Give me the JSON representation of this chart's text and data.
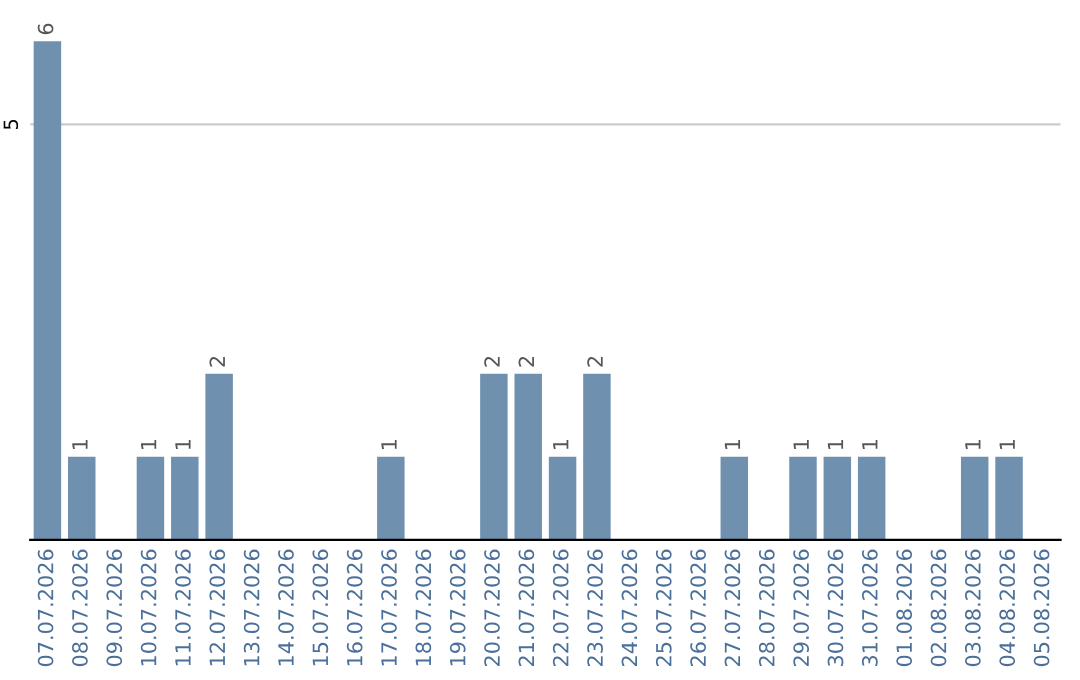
{
  "chart_data": {
    "type": "bar",
    "categories": [
      "07.07.2026",
      "08.07.2026",
      "09.07.2026",
      "10.07.2026",
      "11.07.2026",
      "12.07.2026",
      "13.07.2026",
      "14.07.2026",
      "15.07.2026",
      "16.07.2026",
      "17.07.2026",
      "18.07.2026",
      "19.07.2026",
      "20.07.2026",
      "21.07.2026",
      "22.07.2026",
      "23.07.2026",
      "24.07.2026",
      "25.07.2026",
      "26.07.2026",
      "27.07.2026",
      "28.07.2026",
      "29.07.2026",
      "30.07.2026",
      "31.07.2026",
      "01.08.2026",
      "02.08.2026",
      "03.08.2026",
      "04.08.2026",
      "05.08.2026"
    ],
    "values": [
      6,
      1,
      0,
      1,
      1,
      2,
      0,
      0,
      0,
      0,
      1,
      0,
      0,
      2,
      2,
      1,
      2,
      0,
      0,
      0,
      1,
      0,
      1,
      1,
      1,
      0,
      0,
      1,
      1,
      0
    ],
    "value_labels": [
      "6",
      "1",
      null,
      "1",
      "1",
      "2",
      null,
      null,
      null,
      null,
      "1",
      null,
      null,
      "2",
      "2",
      "1",
      "2",
      null,
      null,
      null,
      "1",
      null,
      "1",
      "1",
      "1",
      null,
      null,
      "1",
      "1",
      null
    ],
    "color": "#7090b0",
    "ref_lines": [
      {
        "axis": "y",
        "value": 5,
        "label": "5",
        "color": "#cccccc"
      }
    ]
  }
}
